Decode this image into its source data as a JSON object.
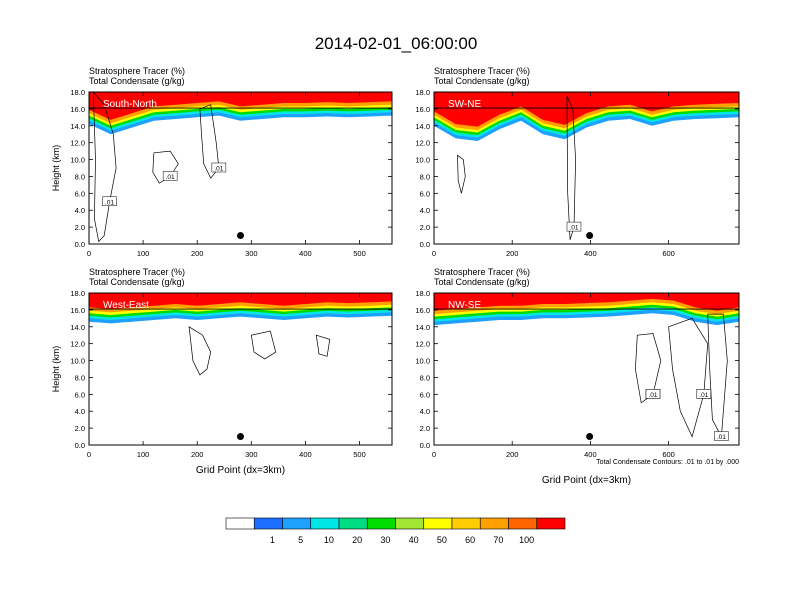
{
  "figure": {
    "title": "2014-02-01_06:00:00",
    "footnote": "Total Condensate Contours: .01 to .01 by .000"
  },
  "colorbar": {
    "colors": [
      "#ffffff",
      "#1e6eff",
      "#1ea0ff",
      "#00e6e6",
      "#00dc82",
      "#00dc00",
      "#a0e632",
      "#ffff00",
      "#ffcd00",
      "#ffa000",
      "#ff6400",
      "#ff0000"
    ],
    "labels": [
      "1",
      "5",
      "10",
      "20",
      "30",
      "40",
      "50",
      "60",
      "70",
      "100"
    ]
  },
  "chart_data": [
    {
      "type": "contour",
      "panel_label": "South-North",
      "header_line1": "Stratosphere Tracer   (%)",
      "header_line2": "Total Condensate   (g/kg)",
      "ylabel": "Height (km)",
      "xlabel": "",
      "xlim": [
        0,
        560
      ],
      "ylim": [
        0,
        18
      ],
      "xticks": [
        0,
        100,
        200,
        300,
        400,
        500
      ],
      "yticks": [
        "0.0",
        "2.0",
        "4.0",
        "6.0",
        "8.0",
        "10.0",
        "12.0",
        "14.0",
        "16.0",
        "18.0"
      ],
      "marker_x": 280,
      "contour_labels": [
        ".01",
        ".01",
        ".01"
      ],
      "tracer_base_km": [
        14.2,
        13.0,
        13.8,
        14.6,
        14.8,
        15.0,
        15.2,
        14.6,
        14.8,
        15.0,
        15.0,
        15.1,
        15.0,
        15.1,
        15.2
      ],
      "condensate_regions": [
        {
          "points": [
            [
              8,
              18
            ],
            [
              28,
              16.5
            ],
            [
              45,
              13
            ],
            [
              50,
              9
            ],
            [
              38,
              5
            ],
            [
              28,
              1
            ],
            [
              18,
              0.3
            ],
            [
              10,
              3
            ],
            [
              12,
              10
            ]
          ]
        },
        {
          "points": [
            [
              120,
              10.8
            ],
            [
              150,
              11
            ],
            [
              165,
              9.5
            ],
            [
              150,
              8
            ],
            [
              130,
              7.2
            ],
            [
              118,
              8.5
            ]
          ]
        },
        {
          "points": [
            [
              205,
              16
            ],
            [
              225,
              16.5
            ],
            [
              235,
              12
            ],
            [
              240,
              9
            ],
            [
              225,
              7.8
            ],
            [
              212,
              9.5
            ],
            [
              208,
              13
            ]
          ]
        }
      ]
    },
    {
      "type": "contour",
      "panel_label": "SW-NE",
      "header_line1": "Stratosphere Tracer   (%)",
      "header_line2": "Total Condensate   (g/kg)",
      "ylabel": "",
      "xlabel": "",
      "xlim": [
        0,
        780
      ],
      "ylim": [
        0,
        18
      ],
      "xticks": [
        0,
        200,
        400,
        600
      ],
      "yticks": [
        "0.0",
        "2.0",
        "4.0",
        "6.0",
        "8.0",
        "10.0",
        "12.0",
        "14.0",
        "16.0",
        "18.0"
      ],
      "marker_x": 398,
      "contour_labels": [
        ".01"
      ],
      "tracer_base_km": [
        14.0,
        12.5,
        12.2,
        13.6,
        14.6,
        13.0,
        12.4,
        13.8,
        14.6,
        14.8,
        14.0,
        14.6,
        14.8,
        14.9,
        15.0
      ],
      "condensate_regions": [
        {
          "points": [
            [
              340,
              17.5
            ],
            [
              355,
              16
            ],
            [
              362,
              10
            ],
            [
              358,
              2
            ],
            [
              348,
              0.5
            ],
            [
              342,
              6
            ]
          ]
        },
        {
          "points": [
            [
              60,
              10.5
            ],
            [
              75,
              10
            ],
            [
              80,
              8
            ],
            [
              70,
              6
            ],
            [
              62,
              7.5
            ]
          ]
        }
      ]
    },
    {
      "type": "contour",
      "panel_label": "West-East",
      "header_line1": "Stratosphere Tracer   (%)",
      "header_line2": "Total Condensate   (g/kg)",
      "ylabel": "Height (km)",
      "xlabel": "Grid Point (dx=3km)",
      "xlim": [
        0,
        560
      ],
      "ylim": [
        0,
        18
      ],
      "xticks": [
        0,
        100,
        200,
        300,
        400,
        500
      ],
      "yticks": [
        "0.0",
        "2.0",
        "4.0",
        "6.0",
        "8.0",
        "10.0",
        "12.0",
        "14.0",
        "16.0",
        "18.0"
      ],
      "marker_x": 280,
      "contour_labels": [],
      "tracer_base_km": [
        14.6,
        14.4,
        14.6,
        14.8,
        15.0,
        14.8,
        15.0,
        15.2,
        15.0,
        14.8,
        15.0,
        15.2,
        15.1,
        15.2,
        15.3
      ],
      "condensate_regions": [
        {
          "points": [
            [
              185,
              14
            ],
            [
              210,
              13
            ],
            [
              225,
              11
            ],
            [
              218,
              9
            ],
            [
              205,
              8.3
            ],
            [
              192,
              10
            ]
          ]
        },
        {
          "points": [
            [
              300,
              13
            ],
            [
              335,
              13.5
            ],
            [
              345,
              11
            ],
            [
              325,
              10.2
            ],
            [
              305,
              11
            ]
          ]
        },
        {
          "points": [
            [
              420,
              13
            ],
            [
              445,
              12.5
            ],
            [
              440,
              10.5
            ],
            [
              425,
              10.8
            ]
          ]
        }
      ]
    },
    {
      "type": "contour",
      "panel_label": "NW-SE",
      "header_line1": "Stratosphere Tracer   (%)",
      "header_line2": "Total Condensate   (g/kg)",
      "ylabel": "",
      "xlabel": "Grid Point (dx=3km)",
      "xlim": [
        0,
        780
      ],
      "ylim": [
        0,
        18
      ],
      "xticks": [
        0,
        200,
        400,
        600
      ],
      "yticks": [
        "0.0",
        "2.0",
        "4.0",
        "6.0",
        "8.0",
        "10.0",
        "12.0",
        "14.0",
        "16.0",
        "18.0"
      ],
      "marker_x": 398,
      "contour_labels": [
        ".01",
        ".01",
        ".01",
        ".01",
        ".01"
      ],
      "tracer_base_km": [
        14.2,
        14.4,
        14.6,
        14.8,
        14.8,
        15.0,
        15.0,
        15.1,
        15.2,
        15.4,
        15.6,
        15.4,
        14.6,
        14.2,
        14.6
      ],
      "condensate_regions": [
        {
          "points": [
            [
              520,
              13
            ],
            [
              560,
              13.2
            ],
            [
              580,
              10
            ],
            [
              560,
              6
            ],
            [
              530,
              5
            ],
            [
              515,
              9
            ]
          ]
        },
        {
          "points": [
            [
              600,
              14
            ],
            [
              660,
              15
            ],
            [
              700,
              12
            ],
            [
              690,
              6
            ],
            [
              660,
              1
            ],
            [
              630,
              4
            ],
            [
              610,
              9
            ]
          ]
        },
        {
          "points": [
            [
              700,
              15.5
            ],
            [
              740,
              15.5
            ],
            [
              750,
              10
            ],
            [
              735,
              1
            ],
            [
              712,
              3
            ],
            [
              705,
              9
            ]
          ]
        }
      ]
    }
  ]
}
